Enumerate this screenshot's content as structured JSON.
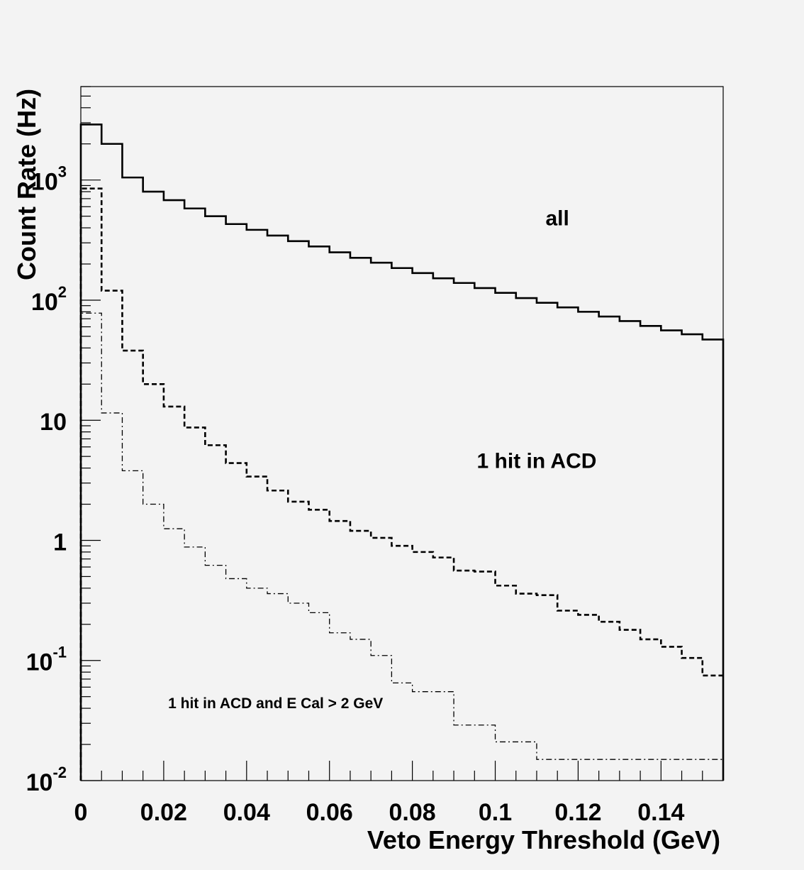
{
  "chart_data": {
    "type": "line",
    "subtype": "step-histogram",
    "title": "",
    "xlabel": "Veto Energy Threshold (GeV)",
    "ylabel": "Count Rate (Hz)",
    "xlim": [
      0,
      0.155
    ],
    "ylim": [
      0.01,
      6000
    ],
    "yscale": "log",
    "grid": false,
    "background": "#f3f3f3",
    "line_color": "#000000",
    "x_ticks": [
      {
        "value": 0,
        "label": "0"
      },
      {
        "value": 0.02,
        "label": "0.02"
      },
      {
        "value": 0.04,
        "label": "0.04"
      },
      {
        "value": 0.06,
        "label": "0.06"
      },
      {
        "value": 0.08,
        "label": "0.08"
      },
      {
        "value": 0.1,
        "label": "0.1"
      },
      {
        "value": 0.12,
        "label": "0.12"
      },
      {
        "value": 0.14,
        "label": "0.14"
      }
    ],
    "y_ticks": [
      {
        "value": 0.01,
        "base": "10",
        "exp": "-2"
      },
      {
        "value": 0.1,
        "base": "10",
        "exp": "-1"
      },
      {
        "value": 1,
        "base": "1",
        "exp": ""
      },
      {
        "value": 10,
        "base": "10",
        "exp": ""
      },
      {
        "value": 100,
        "base": "10",
        "exp": "2"
      },
      {
        "value": 1000,
        "base": "10",
        "exp": "3"
      }
    ],
    "bin_width": 0.005,
    "series": [
      {
        "line": "solid",
        "values": [
          2900,
          2000,
          1050,
          800,
          680,
          580,
          500,
          430,
          385,
          345,
          310,
          280,
          250,
          225,
          205,
          185,
          168,
          152,
          139,
          126,
          115,
          104,
          95,
          87,
          80,
          73,
          67,
          61,
          56,
          52,
          47
        ]
      },
      {
        "line": "dashed",
        "values": [
          850,
          120,
          38,
          20,
          13,
          8.7,
          6.2,
          4.4,
          3.4,
          2.6,
          2.1,
          1.8,
          1.45,
          1.2,
          1.05,
          0.9,
          0.8,
          0.72,
          0.56,
          0.55,
          0.42,
          0.36,
          0.35,
          0.26,
          0.24,
          0.21,
          0.18,
          0.15,
          0.13,
          0.105,
          0.075
        ]
      },
      {
        "line": "dash-dot",
        "values": [
          78,
          11.5,
          3.8,
          2.0,
          1.25,
          0.88,
          0.62,
          0.48,
          0.4,
          0.36,
          0.3,
          0.25,
          0.17,
          0.15,
          0.11,
          0.065,
          0.055,
          0.055,
          0.029,
          0.029,
          0.021,
          0.021,
          0.015,
          0.015,
          0.015,
          0.015,
          0.015,
          0.015,
          0.015,
          0.015,
          0.015
        ]
      }
    ],
    "annotations": [
      {
        "text": "all",
        "x": 0.115,
        "y": 420,
        "size": 30
      },
      {
        "text": "1 hit in ACD",
        "x": 0.11,
        "y": 4.0,
        "size": 30
      },
      {
        "text": "1 hit in ACD  and E Cal > 2 GeV",
        "x": 0.047,
        "y": 0.04,
        "size": 21
      }
    ]
  }
}
